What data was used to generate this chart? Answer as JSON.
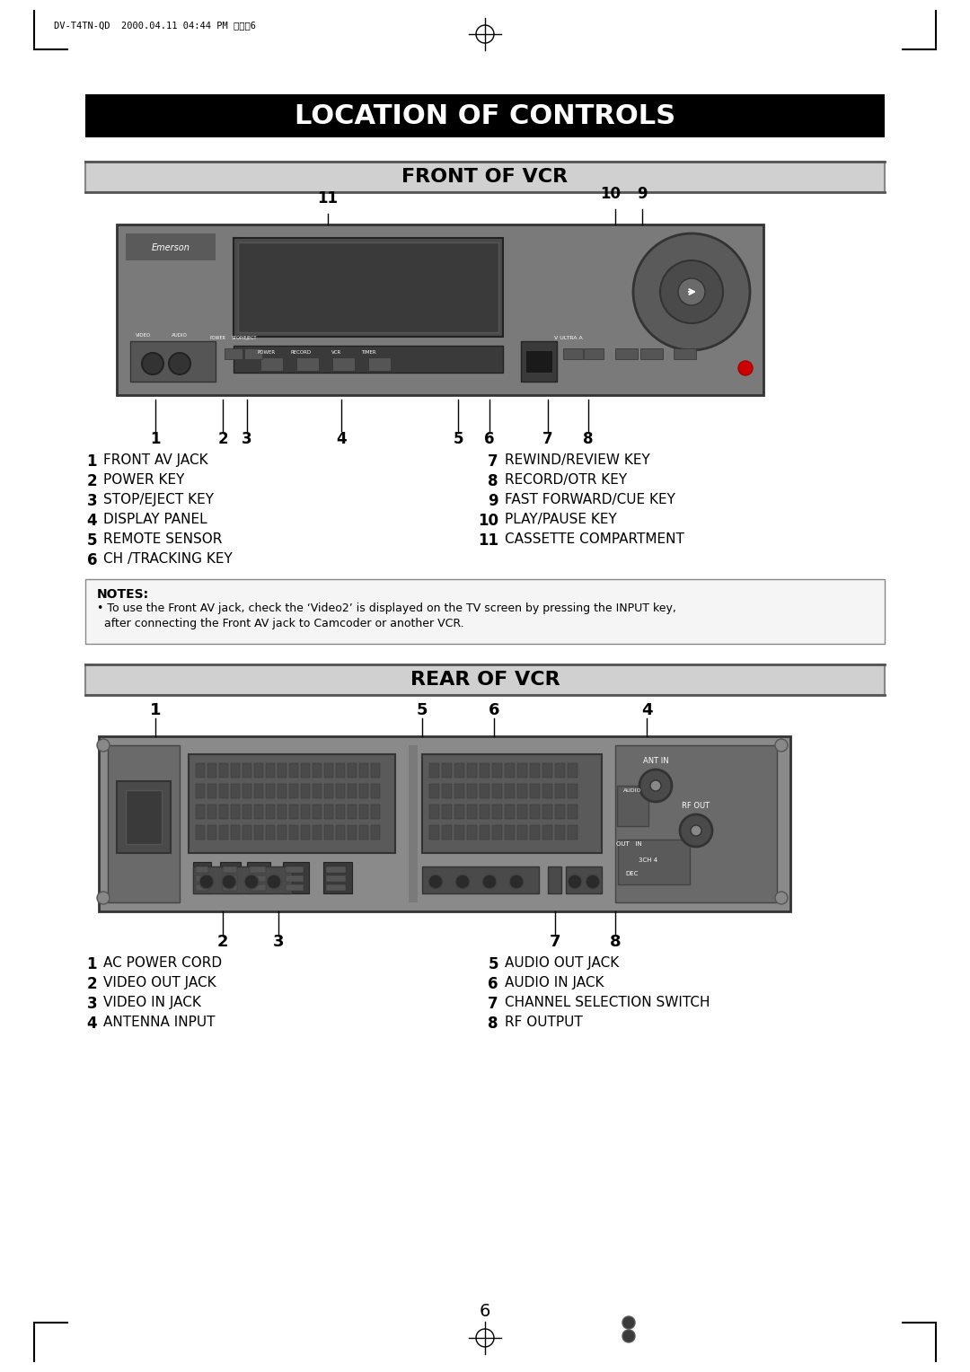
{
  "page_title": "LOCATION OF CONTROLS",
  "section1_title": "FRONT OF VCR",
  "section2_title": "REAR OF VCR",
  "header_text": "DV-T4TN-QD  2000.04.11 04:44 PM 페이지6",
  "page_number": "6",
  "bg_color": "#ffffff",
  "title_bg": "#000000",
  "title_fg": "#ffffff",
  "section_bg": "#d0d0d0",
  "section_fg": "#000000",
  "front_labels_left": [
    [
      "1",
      "FRONT AV JACK"
    ],
    [
      "2",
      "POWER KEY"
    ],
    [
      "3",
      "STOP/EJECT KEY"
    ],
    [
      "4",
      "DISPLAY PANEL"
    ],
    [
      "5",
      "REMOTE SENSOR"
    ],
    [
      "6",
      "CH /TRACKING KEY"
    ]
  ],
  "front_labels_right": [
    [
      "7",
      "REWIND/REVIEW KEY"
    ],
    [
      "8",
      "RECORD/OTR KEY"
    ],
    [
      "9",
      "FAST FORWARD/CUE KEY"
    ],
    [
      "10",
      "PLAY/PAUSE KEY"
    ],
    [
      "11",
      "CASSETTE COMPARTMENT"
    ]
  ],
  "rear_labels_left": [
    [
      "1",
      "AC POWER CORD"
    ],
    [
      "2",
      "VIDEO OUT JACK"
    ],
    [
      "3",
      "VIDEO IN JACK"
    ],
    [
      "4",
      "ANTENNA INPUT"
    ]
  ],
  "rear_labels_right": [
    [
      "5",
      "AUDIO OUT JACK"
    ],
    [
      "6",
      "AUDIO IN JACK"
    ],
    [
      "7",
      "CHANNEL SELECTION SWITCH"
    ],
    [
      "8",
      "RF OUTPUT"
    ]
  ],
  "notes_title": "NOTES:",
  "notes_text": "• To use the Front AV jack, check the ‘Video2’ is displayed on the TV screen by pressing the INPUT key,\n  after connecting the Front AV jack to Camcoder or another VCR.",
  "front_callout_numbers": [
    "11",
    "10 9",
    "1",
    "2",
    "3",
    "4",
    "5",
    "6",
    "7",
    "8"
  ],
  "rear_callout_numbers_top": [
    "1",
    "5",
    "6",
    "4"
  ],
  "rear_callout_numbers_bottom": [
    "2",
    "3",
    "7",
    "8"
  ]
}
